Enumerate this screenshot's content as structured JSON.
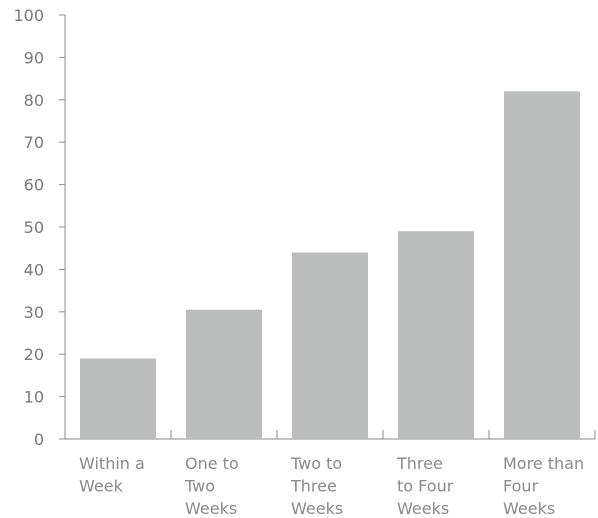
{
  "chart_data": {
    "type": "bar",
    "title": "",
    "xlabel": "",
    "ylabel": "",
    "categories": [
      [
        "Within a",
        "Week"
      ],
      [
        "One to",
        "Two",
        "Weeks"
      ],
      [
        "Two to",
        "Three",
        "Weeks"
      ],
      [
        "Three",
        "to Four",
        "Weeks"
      ],
      [
        "More than",
        "Four",
        "Weeks"
      ]
    ],
    "values": [
      19,
      30.5,
      44,
      49,
      82
    ],
    "ylim": [
      0,
      100
    ],
    "yticks": [
      0,
      10,
      20,
      30,
      40,
      50,
      60,
      70,
      80,
      90,
      100
    ],
    "bar_color": "#bbbdbc",
    "axis_color": "#8c8c8c",
    "text_color": "#7a7a7a",
    "grid": false,
    "legend": "none"
  }
}
